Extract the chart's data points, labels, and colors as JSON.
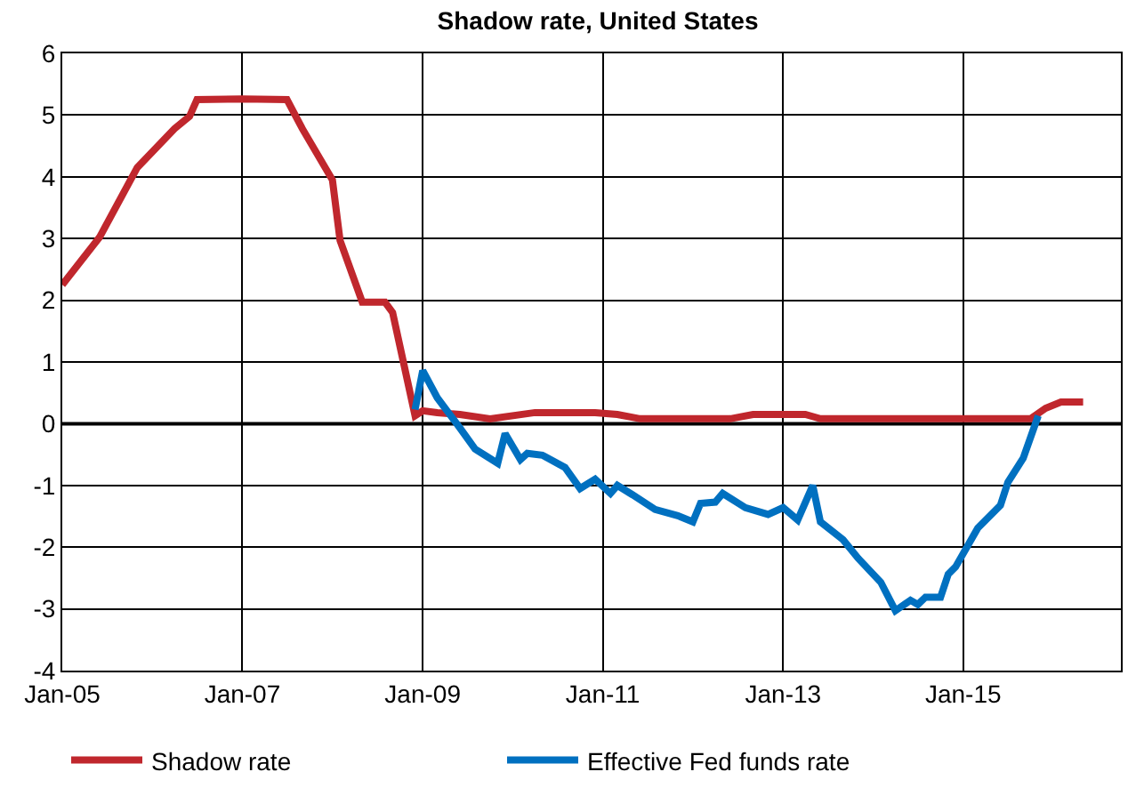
{
  "chart_data": {
    "type": "line",
    "title": "Shadow rate, United States",
    "xlim": [
      "2005-01",
      "2016-10"
    ],
    "xticks": [
      {
        "value": "2005-01",
        "label": "Jan-05"
      },
      {
        "value": "2007-01",
        "label": "Jan-07"
      },
      {
        "value": "2009-01",
        "label": "Jan-09"
      },
      {
        "value": "2011-01",
        "label": "Jan-11"
      },
      {
        "value": "2013-01",
        "label": "Jan-13"
      },
      {
        "value": "2015-01",
        "label": "Jan-15"
      }
    ],
    "ylim": [
      -4,
      6
    ],
    "yticks": [
      -4,
      -3,
      -2,
      -1,
      0,
      1,
      2,
      3,
      4,
      5,
      6
    ],
    "grid": true,
    "legend": "bottom",
    "line_style": "solid",
    "marker": "none",
    "ref_lines": [
      {
        "axis": "y",
        "value": 0,
        "color": "#000000"
      }
    ],
    "series": [
      {
        "name": "Shadow rate",
        "color": "#c0272d",
        "x": [
          "2005-01",
          "2005-06",
          "2005-11",
          "2006-04",
          "2006-06",
          "2006-07",
          "2007-01",
          "2007-07",
          "2007-09",
          "2008-01",
          "2008-02",
          "2008-05",
          "2008-08",
          "2008-09",
          "2008-12",
          "2009-01",
          "2009-03",
          "2009-06",
          "2009-10",
          "2010-04",
          "2010-12",
          "2011-03",
          "2011-06",
          "2012-06",
          "2012-09",
          "2013-04",
          "2013-06",
          "2015-10",
          "2015-12",
          "2016-02",
          "2016-05"
        ],
        "values": [
          2.25,
          3.02,
          4.15,
          4.78,
          4.98,
          5.25,
          5.26,
          5.25,
          4.78,
          3.95,
          2.97,
          1.97,
          1.97,
          1.8,
          0.13,
          0.21,
          0.18,
          0.15,
          0.08,
          0.18,
          0.18,
          0.15,
          0.08,
          0.08,
          0.15,
          0.15,
          0.08,
          0.08,
          0.25,
          0.35,
          0.35
        ]
      },
      {
        "name": "Effective Fed funds rate",
        "color": "#0070c0",
        "x": [
          "2008-12",
          "2009-01",
          "2009-03",
          "2009-06",
          "2009-08",
          "2009-11",
          "2009-12",
          "2010-02",
          "2010-03",
          "2010-05",
          "2010-08",
          "2010-10",
          "2010-12",
          "2011-02",
          "2011-03",
          "2011-05",
          "2011-08",
          "2011-11",
          "2012-01",
          "2012-02",
          "2012-04",
          "2012-05",
          "2012-08",
          "2012-11",
          "2013-01",
          "2013-03",
          "2013-05",
          "2013-06",
          "2013-09",
          "2013-11",
          "2014-02",
          "2014-04",
          "2014-06",
          "2014-07",
          "2014-08",
          "2014-10",
          "2014-11",
          "2014-12",
          "2015-03",
          "2015-06",
          "2015-07",
          "2015-09",
          "2015-11"
        ],
        "values": [
          0.23,
          0.86,
          0.42,
          -0.07,
          -0.41,
          -0.64,
          -0.16,
          -0.58,
          -0.48,
          -0.51,
          -0.71,
          -1.05,
          -0.9,
          -1.13,
          -1.0,
          -1.15,
          -1.39,
          -1.49,
          -1.59,
          -1.29,
          -1.27,
          -1.13,
          -1.36,
          -1.47,
          -1.36,
          -1.56,
          -1.0,
          -1.59,
          -1.88,
          -2.18,
          -2.57,
          -3.03,
          -2.86,
          -2.93,
          -2.81,
          -2.81,
          -2.44,
          -2.32,
          -1.69,
          -1.32,
          -0.95,
          -0.56,
          0.13
        ]
      }
    ]
  }
}
